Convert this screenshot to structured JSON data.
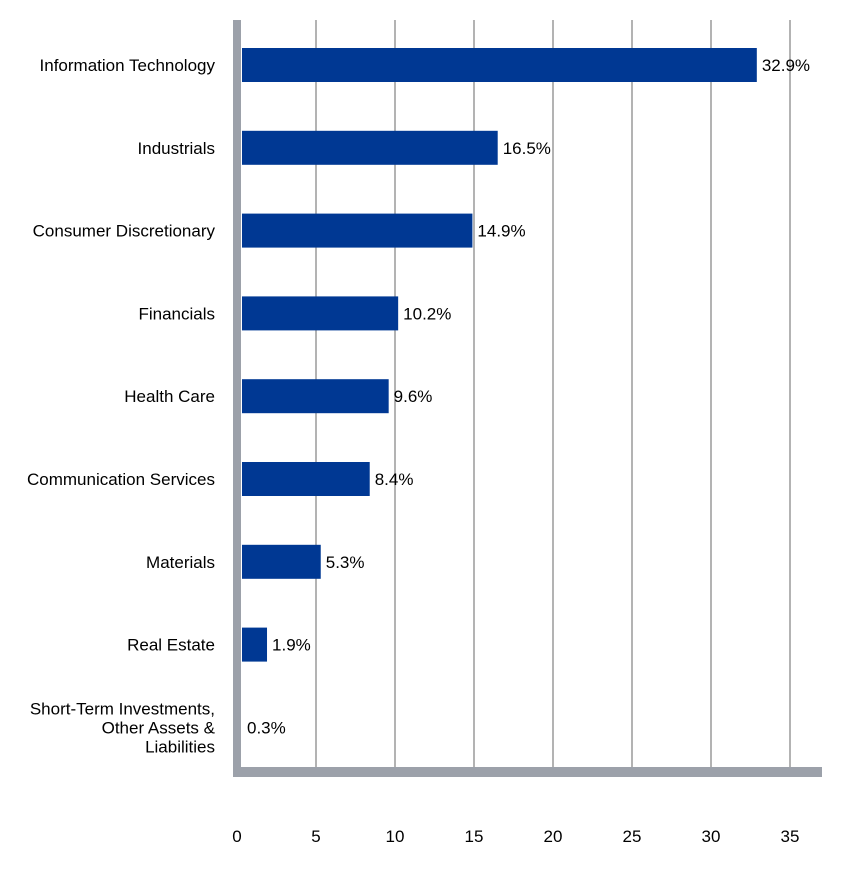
{
  "chart_data": {
    "type": "bar",
    "orientation": "horizontal",
    "title": "",
    "xlabel": "",
    "ylabel": "",
    "categories": [
      "Information Technology",
      "Industrials",
      "Consumer Discretionary",
      "Financials",
      "Health Care",
      "Communication Services",
      "Materials",
      "Real Estate",
      "Short-Term Investments, Other Assets & Liabilities"
    ],
    "category_label_lines": [
      [
        "Information Technology"
      ],
      [
        "Industrials"
      ],
      [
        "Consumer Discretionary"
      ],
      [
        "Financials"
      ],
      [
        "Health Care"
      ],
      [
        "Communication Services"
      ],
      [
        "Materials"
      ],
      [
        "Real Estate"
      ],
      [
        "Short-Term Investments,",
        "Other Assets &",
        "Liabilities"
      ]
    ],
    "values": [
      32.9,
      16.5,
      14.9,
      10.2,
      9.6,
      8.4,
      5.3,
      1.9,
      0.3
    ],
    "value_labels": [
      "32.9%",
      "16.5%",
      "14.9%",
      "10.2%",
      "9.6%",
      "8.4%",
      "5.3%",
      "1.9%",
      "0.3%"
    ],
    "x_ticks": [
      0,
      5,
      10,
      15,
      20,
      25,
      30,
      35
    ],
    "xlim": [
      0,
      37
    ],
    "grid": true,
    "legend": "none",
    "bar_color": "#003893",
    "axis_color": "#9ca1aa",
    "grid_color": "#b3b3b3"
  }
}
